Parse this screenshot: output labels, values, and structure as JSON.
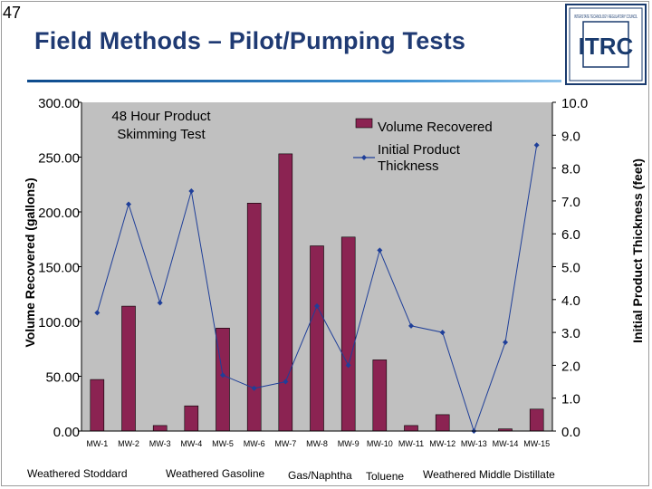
{
  "slide": {
    "number": "47",
    "title": "Field Methods – Pilot/Pumping Tests"
  },
  "logo": {
    "letters": "ITRC",
    "ring_text": "INTERSTATE TECHNOLOGY REGULATORY COUNCIL"
  },
  "colors": {
    "bar": "#8b2352",
    "line": "#1f3f99",
    "title": "#1f3a73"
  },
  "chart_data": {
    "type": "bar",
    "title": "",
    "annotation": "48 Hour Product Skimming Test",
    "categories": [
      "MW-1",
      "MW-2",
      "MW-3",
      "MW-4",
      "MW-5",
      "MW-6",
      "MW-7",
      "MW-8",
      "MW-9",
      "MW-10",
      "MW-11",
      "MW-12",
      "MW-13",
      "MW-14",
      "MW-15"
    ],
    "series": [
      {
        "name": "Volume Recovered",
        "kind": "bar",
        "axis": "left",
        "values": [
          47,
          114,
          5,
          23,
          94,
          208,
          253,
          169,
          177,
          65,
          5,
          15,
          0,
          2,
          20
        ]
      },
      {
        "name": "Initial Product Thickness",
        "kind": "line",
        "axis": "right",
        "values": [
          3.6,
          6.9,
          3.9,
          7.3,
          1.7,
          1.3,
          1.5,
          3.8,
          2.0,
          5.5,
          3.2,
          3.0,
          0.0,
          2.7,
          8.7
        ]
      }
    ],
    "ylabel": "Volume Recovered (gallons)",
    "ylabel_right": "Initial Product Thickness (feet)",
    "ylim": [
      0,
      300
    ],
    "ylim_right": [
      0,
      10
    ],
    "yticks": [
      "0.00",
      "50.00",
      "100.00",
      "150.00",
      "200.00",
      "250.00",
      "300.00"
    ],
    "yticks_right": [
      "0.0",
      "1.0",
      "2.0",
      "3.0",
      "4.0",
      "5.0",
      "6.0",
      "7.0",
      "8.0",
      "9.0",
      "10.0"
    ],
    "legend_labels": [
      "Volume Recovered",
      "Initial Product",
      "Thickness"
    ],
    "groups": [
      "Weathered Stoddard",
      "Weathered Gasoline",
      "Gas/Naphtha",
      "Toluene",
      "Weathered Middle Distillate"
    ]
  }
}
